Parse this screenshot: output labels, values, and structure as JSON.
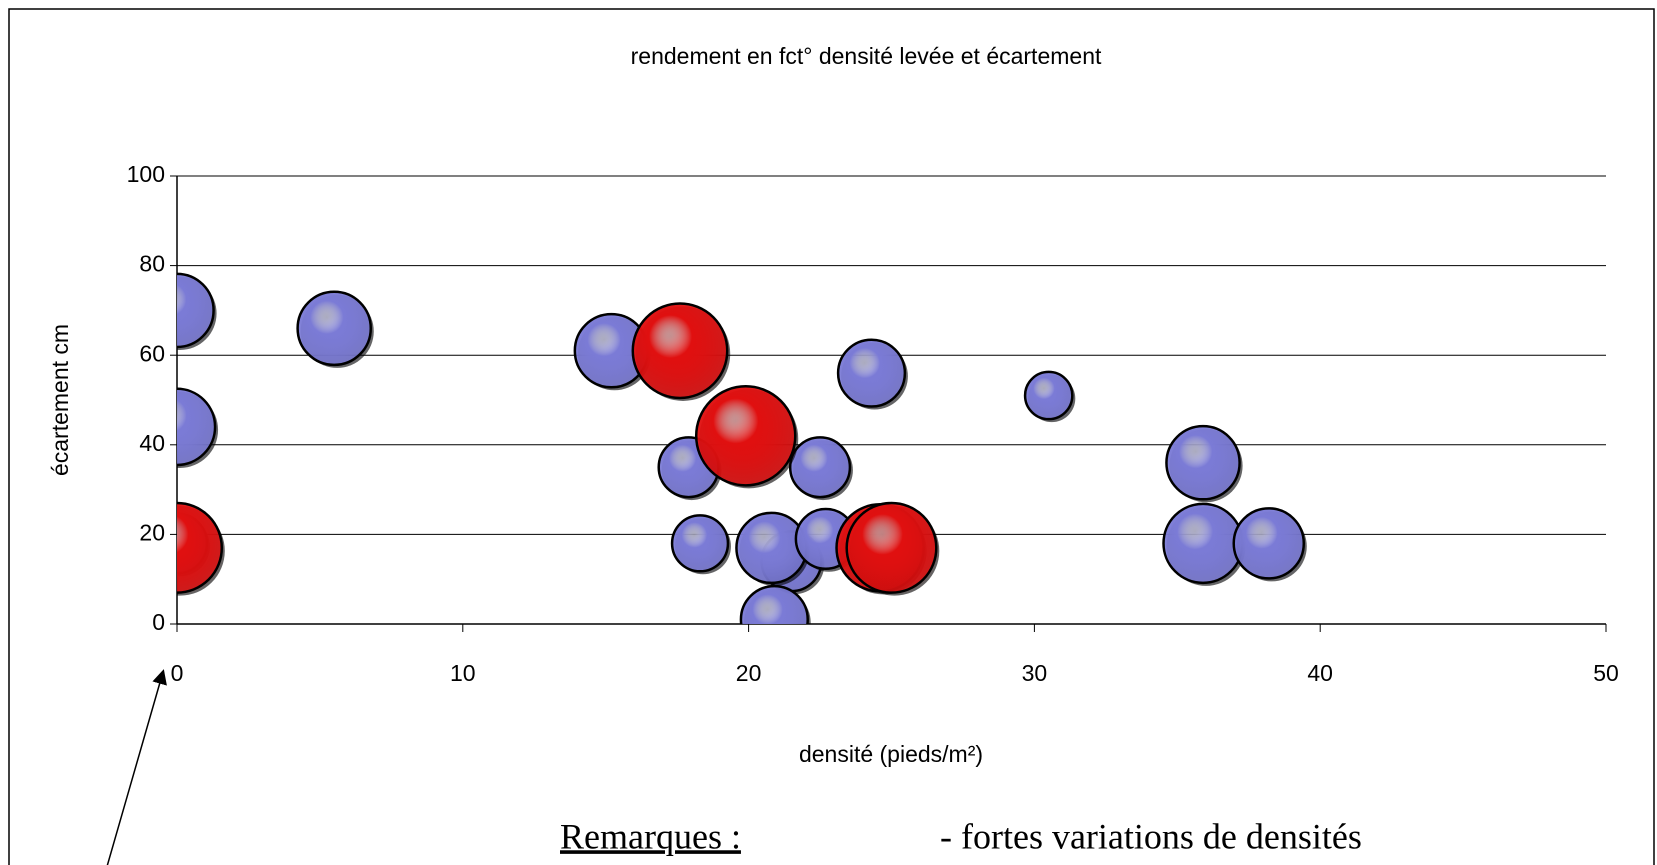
{
  "chart_data": {
    "type": "bubble",
    "title": "rendement en fct° densité levée et écartement",
    "xlabel": "densité (pieds/m²)",
    "ylabel": "écartement cm",
    "xlim": [
      0,
      50
    ],
    "xticks": [
      0,
      10,
      20,
      30,
      40,
      50
    ],
    "ylim": [
      0,
      100
    ],
    "yticks": [
      0,
      20,
      40,
      60,
      80,
      100
    ],
    "grid": true,
    "series": [
      {
        "color": "#7b7bd6",
        "x": [
          0,
          0,
          0,
          5.5,
          15.2,
          17.9,
          18.3,
          21.5,
          20.8,
          20.9,
          22.5,
          22.7,
          24.3,
          30.5,
          35.9,
          35.9,
          38.2
        ],
        "values": [
          70,
          44,
          18,
          66,
          61,
          35,
          18,
          14,
          17,
          1,
          35,
          19,
          56,
          51,
          36,
          18,
          18
        ],
        "sizes": [
          12,
          13,
          8,
          12,
          12,
          8,
          7,
          8,
          11,
          10,
          8,
          8,
          10,
          5,
          12,
          14,
          11
        ]
      },
      {
        "color": "#e01010",
        "x": [
          0,
          17.6,
          19.9,
          24.6,
          25.0
        ],
        "values": [
          17,
          61,
          42,
          17,
          17
        ],
        "sizes": [
          18,
          20,
          22,
          17,
          18
        ]
      }
    ],
    "annotations": [
      "Remarques :",
      "- fortes variations de densités"
    ]
  }
}
